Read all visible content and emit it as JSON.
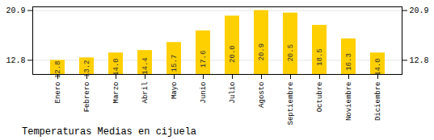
{
  "chart_data": {
    "type": "bar",
    "title": "Temperaturas Medias en cijuela",
    "categories": [
      "Enero",
      "Febrero",
      "Marzo",
      "Abril",
      "Mayo",
      "Junio",
      "Julio",
      "Agosto",
      "Septiembre",
      "Octubre",
      "Noviembre",
      "Diciembre"
    ],
    "values": [
      12.8,
      13.2,
      14.0,
      14.4,
      15.7,
      17.6,
      20.0,
      20.9,
      20.5,
      18.5,
      16.3,
      14.0
    ],
    "value_labels": [
      "12.8",
      "13.2",
      "14.0",
      "14.4",
      "15.7",
      "17.6",
      "20.0",
      "20.9",
      "20.5",
      "18.5",
      "16.3",
      "14.0"
    ],
    "data_labels": true,
    "color": "#FFD000",
    "ylim": [
      10.5,
      21.5
    ],
    "yticks": [
      12.8,
      20.9
    ],
    "grid": true
  }
}
